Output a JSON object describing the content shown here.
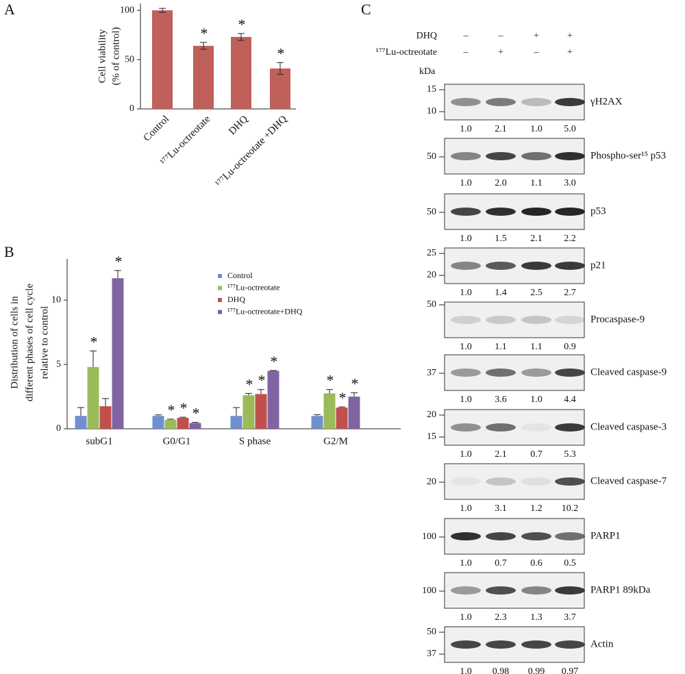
{
  "chart_data": [
    {
      "type": "bar",
      "panel": "A",
      "ylabel": [
        "Cell viability",
        "(% of control)"
      ],
      "categories": [
        "Control",
        "¹⁷⁷Lu-octreotate",
        "DHQ",
        "¹⁷⁷Lu-octreotate +DHQ"
      ],
      "values": [
        100,
        64,
        73,
        41
      ],
      "errors": [
        2,
        3.5,
        3.5,
        6
      ],
      "markers": [
        null,
        "*",
        "*",
        "*"
      ],
      "color": "#c0605a",
      "ylim": [
        0,
        107
      ],
      "yticks": [
        0,
        50,
        100
      ]
    },
    {
      "type": "grouped-bar",
      "panel": "B",
      "ylabel": [
        "Distribution of cells in",
        "different phases of cell cycle",
        "relative to control"
      ],
      "categories": [
        "subG1",
        "G0/G1",
        "S phase",
        "G2/M"
      ],
      "series": [
        {
          "name": "Control",
          "color": "#6f8fcf",
          "values": [
            1.0,
            1.0,
            1.0,
            1.0
          ],
          "errors": [
            0.65,
            0.08,
            0.65,
            0.1
          ],
          "markers": [
            null,
            null,
            null,
            null
          ]
        },
        {
          "name": "¹⁷⁷Lu-octreotate",
          "color": "#9bbb59",
          "values": [
            4.8,
            0.7,
            2.6,
            2.75
          ],
          "errors": [
            1.25,
            0.05,
            0.15,
            0.3
          ],
          "markers": [
            "*",
            "*",
            "*",
            "*"
          ]
        },
        {
          "name": "DHQ",
          "color": "#c0504d",
          "values": [
            1.75,
            0.85,
            2.7,
            1.65
          ],
          "errors": [
            0.6,
            0.05,
            0.35,
            0.05
          ],
          "markers": [
            null,
            "*",
            "*",
            "*"
          ]
        },
        {
          "name": "¹⁷⁷Lu-octreotate+DHQ",
          "color": "#8064a2",
          "values": [
            11.7,
            0.45,
            4.5,
            2.5
          ],
          "errors": [
            0.6,
            0.05,
            0.03,
            0.3
          ],
          "markers": [
            "*",
            "*",
            "*",
            "*"
          ]
        }
      ],
      "ylim": [
        0,
        13.2
      ],
      "yticks": [
        0,
        5,
        10
      ],
      "legend": "upper right"
    }
  ],
  "blot": {
    "panel": "C",
    "conditions": [
      {
        "name": "DHQ",
        "signs": [
          "–",
          "–",
          "+",
          "+"
        ]
      },
      {
        "name": "¹⁷⁷Lu-octreotate",
        "signs": [
          "–",
          "+",
          "–",
          "+"
        ]
      }
    ],
    "unit": "kDa",
    "blots": [
      {
        "name": "γH2AX",
        "markers": [
          "15",
          "10"
        ],
        "quantification": [
          "1.0",
          "2.1",
          "1.0",
          "5.0"
        ]
      },
      {
        "name": "Phospho-ser¹⁵ p53",
        "markers": [
          "50"
        ],
        "quantification": [
          "1.0",
          "2.0",
          "1.1",
          "3.0"
        ]
      },
      {
        "name": "p53",
        "markers": [
          "50"
        ],
        "quantification": [
          "1.0",
          "1.5",
          "2.1",
          "2.2"
        ]
      },
      {
        "name": "p21",
        "markers": [
          "25",
          "20"
        ],
        "quantification": [
          "1.0",
          "1.4",
          "2.5",
          "2.7"
        ]
      },
      {
        "name": "Procaspase-9",
        "markers": [
          "50"
        ],
        "quantification": [
          "1.0",
          "1.1",
          "1.1",
          "0.9"
        ]
      },
      {
        "name": "Cleaved caspase-9",
        "markers": [
          "37"
        ],
        "quantification": [
          "1.0",
          "3.6",
          "1.0",
          "4.4"
        ]
      },
      {
        "name": "Cleaved  caspase-3",
        "markers": [
          "20",
          "15"
        ],
        "quantification": [
          "1.0",
          "2.1",
          "0.7",
          "5.3"
        ]
      },
      {
        "name": "Cleaved caspase-7",
        "markers": [
          "20"
        ],
        "quantification": [
          "1.0",
          "3.1",
          "1.2",
          "10.2"
        ]
      },
      {
        "name": "PARP1",
        "markers": [
          "100"
        ],
        "quantification": [
          "1.0",
          "0.7",
          "0.6",
          "0.5"
        ]
      },
      {
        "name": "PARP1  89kDa",
        "markers": [
          "100"
        ],
        "quantification": [
          "1.0",
          "2.3",
          "1.3",
          "3.7"
        ]
      },
      {
        "name": "Actin",
        "markers": [
          "50",
          "37"
        ],
        "quantification": [
          "1.0",
          "0.98",
          "0.99",
          "0.97"
        ]
      }
    ]
  }
}
